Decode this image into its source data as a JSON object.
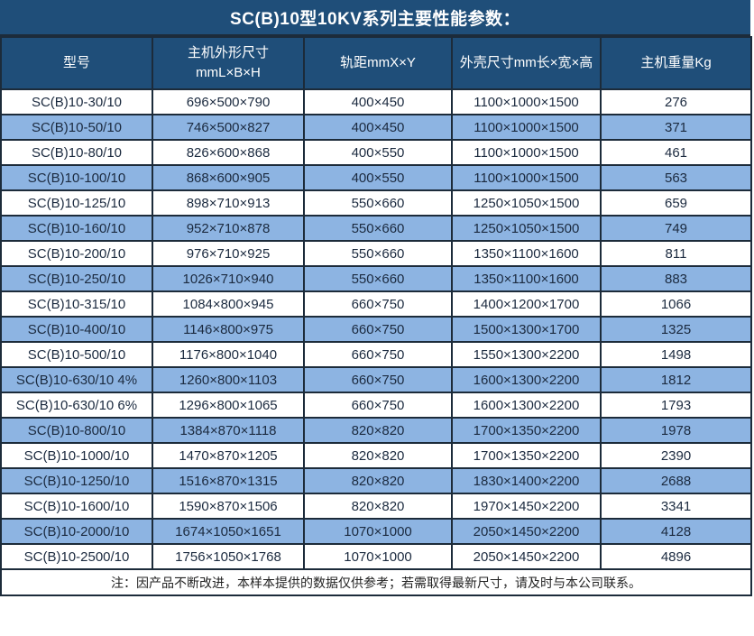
{
  "title": "SC(B)10型10KV系列主要性能参数：",
  "colors": {
    "header_bg": "#1F4E79",
    "row_alt": "#8DB4E2",
    "row": "#FFFFFF",
    "border": "#1C2B3A",
    "header_text": "#FFFFFF",
    "body_text": "#1B2A3F"
  },
  "table": {
    "headers": [
      {
        "l1": "型号"
      },
      {
        "l1": "主机外形尺寸",
        "l2": "mmL×B×H"
      },
      {
        "l1": "轨距mmX×Y"
      },
      {
        "l1": "外壳尺寸mm长×宽×高"
      },
      {
        "l1": "主机重量Kg"
      }
    ],
    "rows": [
      [
        "SC(B)10-30/10",
        "696×500×790",
        "400×450",
        "1100×1000×1500",
        "276"
      ],
      [
        "SC(B)10-50/10",
        "746×500×827",
        "400×450",
        "1100×1000×1500",
        "371"
      ],
      [
        "SC(B)10-80/10",
        "826×600×868",
        "400×550",
        "1100×1000×1500",
        "461"
      ],
      [
        "SC(B)10-100/10",
        "868×600×905",
        "400×550",
        "1100×1000×1500",
        "563"
      ],
      [
        "SC(B)10-125/10",
        "898×710×913",
        "550×660",
        "1250×1050×1500",
        "659"
      ],
      [
        "SC(B)10-160/10",
        "952×710×878",
        "550×660",
        "1250×1050×1500",
        "749"
      ],
      [
        "SC(B)10-200/10",
        "976×710×925",
        "550×660",
        "1350×1100×1600",
        "811"
      ],
      [
        "SC(B)10-250/10",
        "1026×710×940",
        "550×660",
        "1350×1100×1600",
        "883"
      ],
      [
        "SC(B)10-315/10",
        "1084×800×945",
        "660×750",
        "1400×1200×1700",
        "1066"
      ],
      [
        "SC(B)10-400/10",
        "1146×800×975",
        "660×750",
        "1500×1300×1700",
        "1325"
      ],
      [
        "SC(B)10-500/10",
        "1176×800×1040",
        "660×750",
        "1550×1300×2200",
        "1498"
      ],
      [
        "SC(B)10-630/10 4%",
        "1260×800×1103",
        "660×750",
        "1600×1300×2200",
        "1812"
      ],
      [
        "SC(B)10-630/10 6%",
        "1296×800×1065",
        "660×750",
        "1600×1300×2200",
        "1793"
      ],
      [
        "SC(B)10-800/10",
        "1384×870×1118",
        "820×820",
        "1700×1350×2200",
        "1978"
      ],
      [
        "SC(B)10-1000/10",
        "1470×870×1205",
        "820×820",
        "1700×1350×2200",
        "2390"
      ],
      [
        "SC(B)10-1250/10",
        "1516×870×1315",
        "820×820",
        "1830×1400×2200",
        "2688"
      ],
      [
        "SC(B)10-1600/10",
        "1590×870×1506",
        "820×820",
        "1970×1450×2200",
        "3341"
      ],
      [
        "SC(B)10-2000/10",
        "1674×1050×1651",
        "1070×1000",
        "2050×1450×2200",
        "4128"
      ],
      [
        "SC(B)10-2500/10",
        "1756×1050×1768",
        "1070×1000",
        "2050×1450×2200",
        "4896"
      ]
    ]
  },
  "note": "注：因产品不断改进，本样本提供的数据仅供参考；若需取得最新尺寸，请及时与本公司联系。"
}
